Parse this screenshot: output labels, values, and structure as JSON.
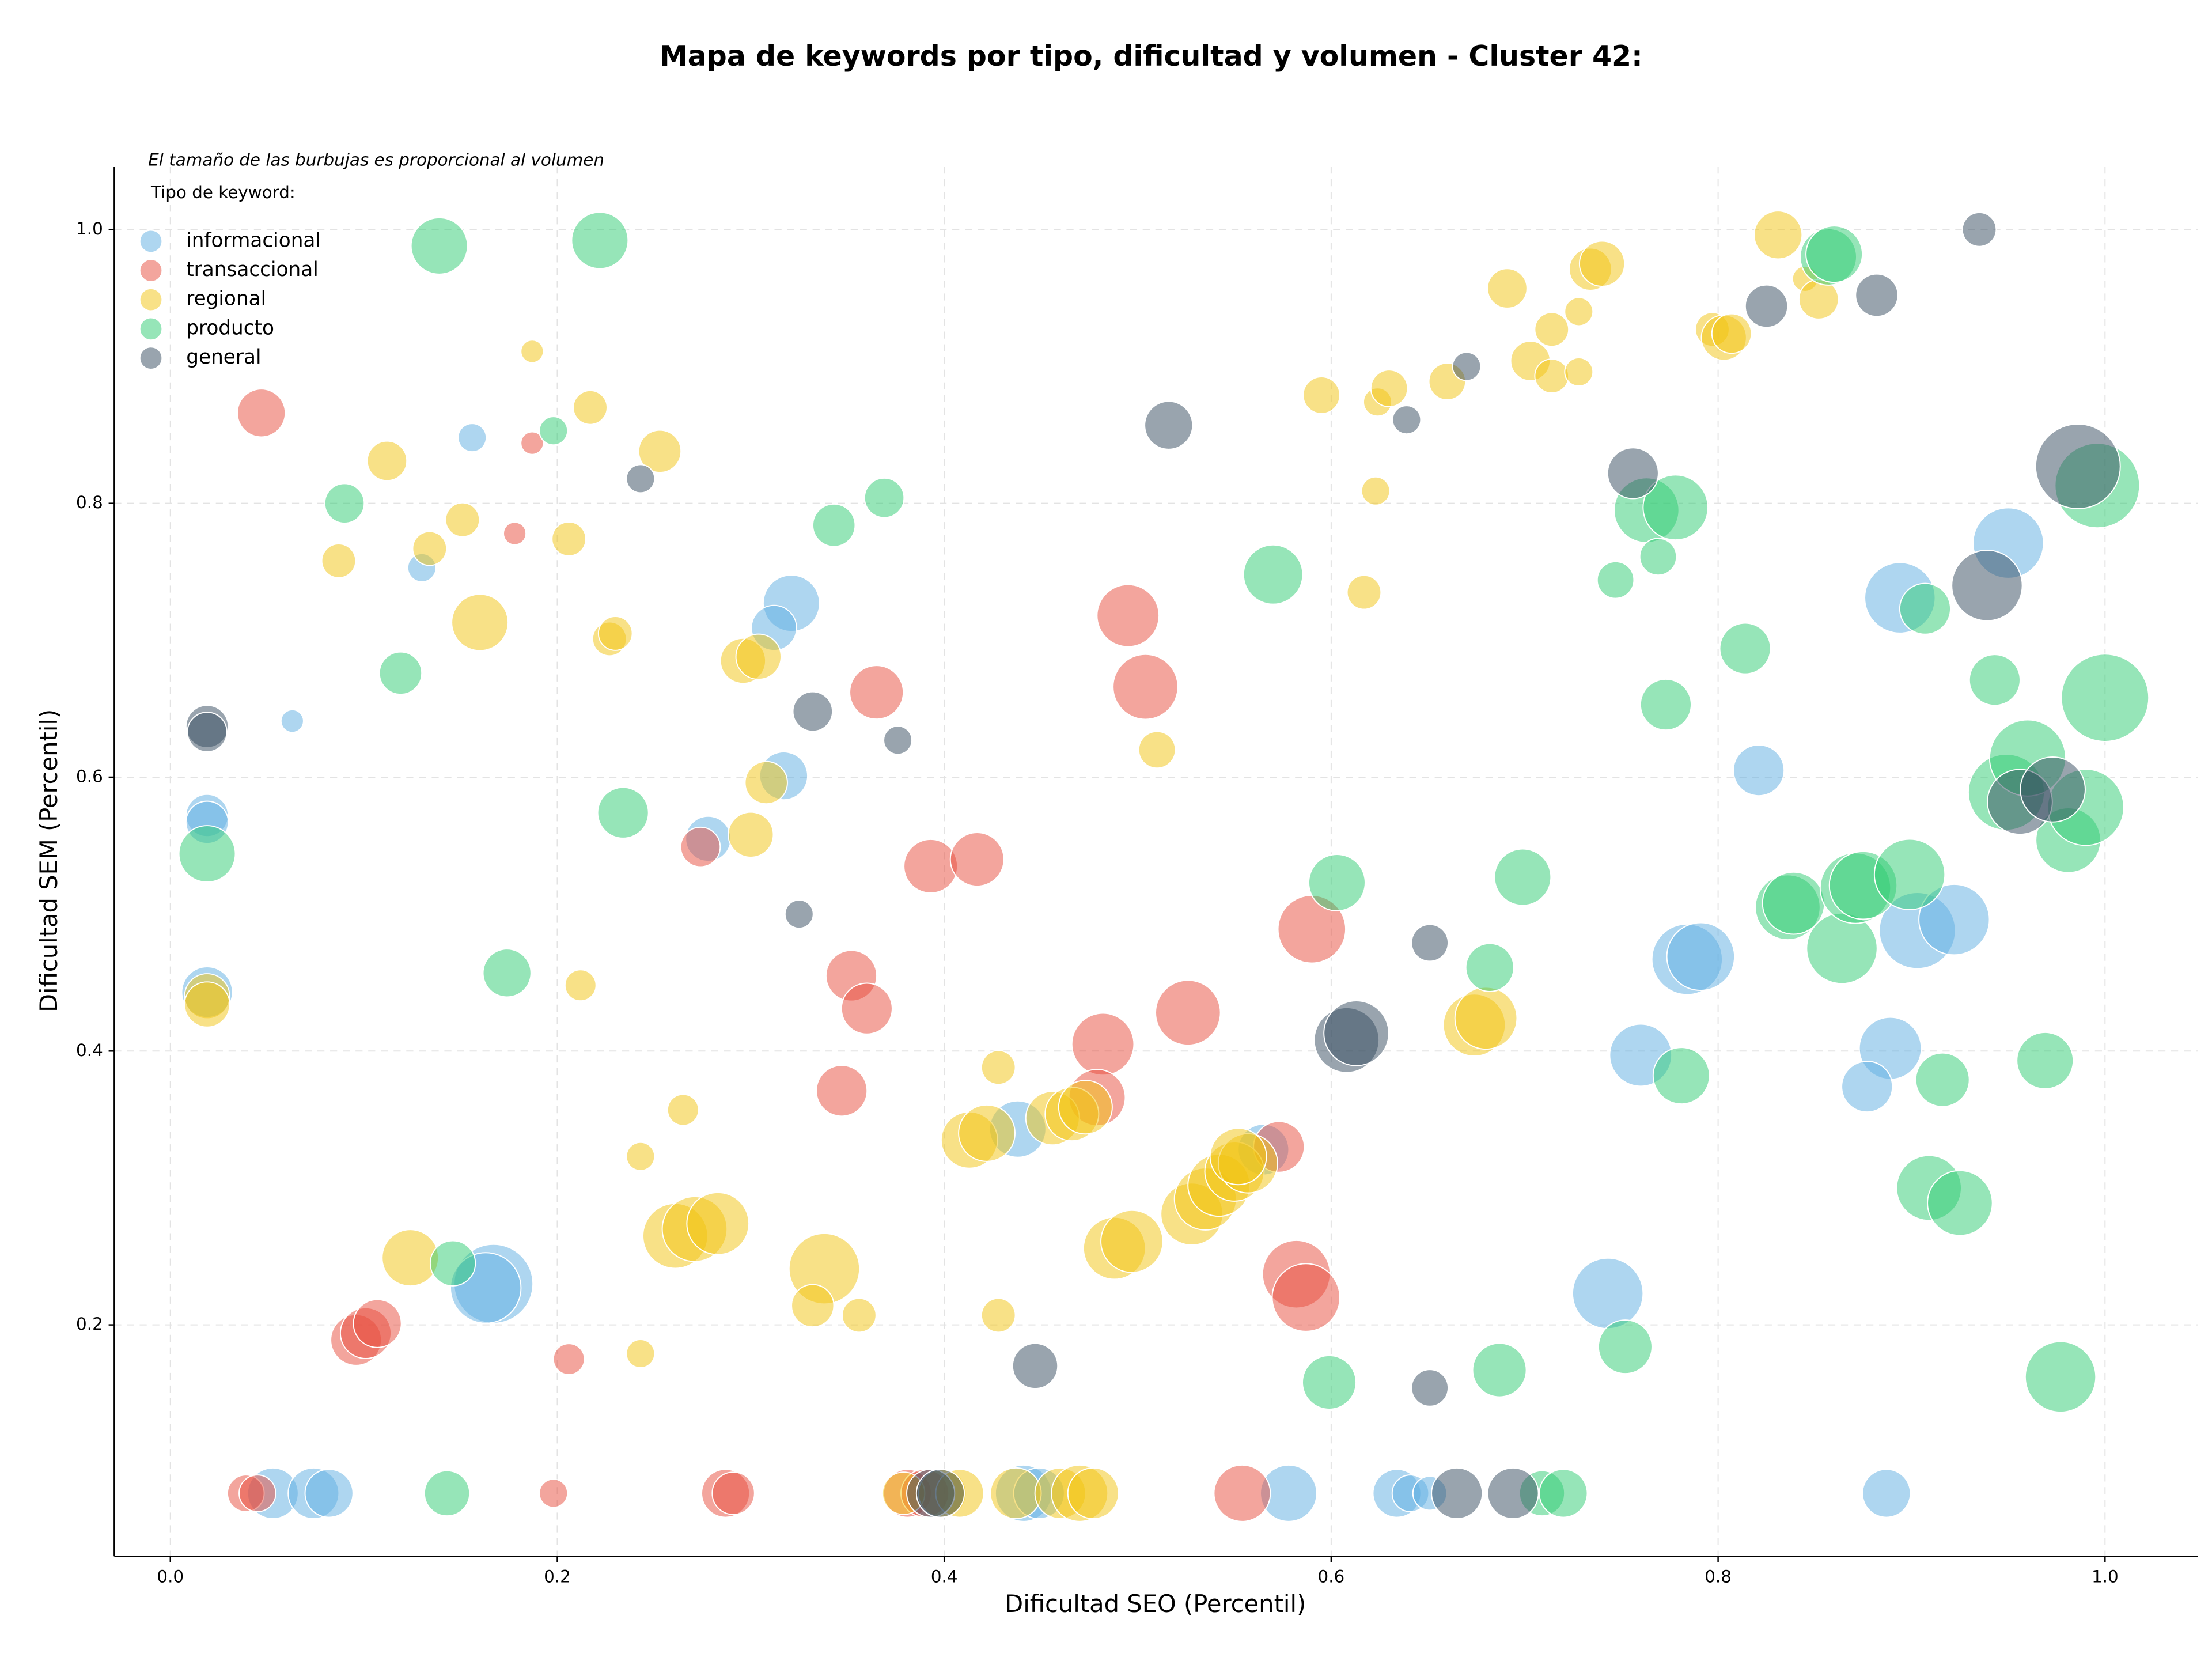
{
  "chart_data": {
    "type": "scatter",
    "title": "Mapa de keywords por tipo, dificultad y volumen - Cluster 42:",
    "x_label": "Dificultad SEO (Percentil)",
    "y_label": "Dificultad SEM (Percentil)",
    "annotation": "El tamaño de las burbujas es proporcional al volumen",
    "legend_title": "Tipo de keyword:",
    "legend": "upper left",
    "grid": true,
    "xlim": [
      -0.029,
      1.048
    ],
    "ylim": [
      0.031,
      1.046
    ],
    "xticks": [
      {
        "value": 0,
        "label": "0.0"
      },
      0.2,
      0.4,
      0.6,
      0.8,
      {
        "value": 1,
        "label": "1.0"
      }
    ],
    "yticks": [
      0.2,
      0.4,
      0.6,
      0.8,
      {
        "value": 1,
        "label": "1.0"
      }
    ],
    "series": [
      {
        "name": "informacional",
        "color": "#5dade2",
        "x": [
          0.019,
          0.019,
          0.019,
          0.156,
          0.13,
          0.063,
          0.321,
          0.312,
          0.317,
          0.278,
          0.167,
          0.163,
          0.438,
          0.565,
          0.894,
          0.95,
          0.821,
          0.784,
          0.791,
          0.903,
          0.922,
          0.76,
          0.889,
          0.877,
          0.743,
          0.053,
          0.074,
          0.082,
          0.578,
          0.634,
          0.641,
          0.651,
          0.887,
          0.441,
          0.449
        ],
        "values": [
          0.572,
          0.567,
          0.443,
          0.848,
          0.753,
          0.641,
          0.727,
          0.709,
          0.601,
          0.555,
          0.23,
          0.227,
          0.343,
          0.328,
          0.731,
          0.771,
          0.605,
          0.467,
          0.469,
          0.488,
          0.496,
          0.397,
          0.402,
          0.374,
          0.223,
          0.077,
          0.077,
          0.077,
          0.077,
          0.077,
          0.077,
          0.077,
          0.077,
          0.077,
          0.077
        ],
        "sizes": [
          225,
          225,
          324,
          100,
          100,
          64,
          400,
          256,
          289,
          256,
          784,
          625,
          400,
          324,
          625,
          625,
          324,
          625,
          576,
          729,
          625,
          484,
          484,
          324,
          625,
          324,
          324,
          289,
          400,
          289,
          169,
          144,
          289,
          400,
          324
        ]
      },
      {
        "name": "transaccional",
        "color": "#e74c3c",
        "x": [
          0.047,
          0.187,
          0.178,
          0.274,
          0.365,
          0.352,
          0.36,
          0.347,
          0.393,
          0.417,
          0.495,
          0.504,
          0.59,
          0.526,
          0.482,
          0.479,
          0.573,
          0.582,
          0.587,
          0.096,
          0.101,
          0.107,
          0.206,
          0.198,
          0.039,
          0.045,
          0.287,
          0.291,
          0.381,
          0.39,
          0.554
        ],
        "values": [
          0.866,
          0.844,
          0.778,
          0.549,
          0.662,
          0.455,
          0.431,
          0.371,
          0.535,
          0.54,
          0.718,
          0.666,
          0.489,
          0.428,
          0.405,
          0.366,
          0.33,
          0.237,
          0.22,
          0.189,
          0.194,
          0.201,
          0.175,
          0.077,
          0.077,
          0.077,
          0.077,
          0.077,
          0.077,
          0.077,
          0.077
        ],
        "sizes": [
          289,
          64,
          64,
          196,
          361,
          324,
          324,
          324,
          361,
          361,
          484,
          529,
          576,
          529,
          484,
          400,
          324,
          576,
          576,
          324,
          324,
          289,
          121,
          100,
          169,
          169,
          289,
          225,
          289,
          289,
          400
        ]
      },
      {
        "name": "regional",
        "color": "#f1c40f",
        "x": [
          0.187,
          0.217,
          0.253,
          0.112,
          0.134,
          0.151,
          0.087,
          0.206,
          0.16,
          0.227,
          0.23,
          0.296,
          0.304,
          0.308,
          0.3,
          0.019,
          0.019,
          0.212,
          0.265,
          0.243,
          0.124,
          0.261,
          0.271,
          0.283,
          0.338,
          0.332,
          0.356,
          0.243,
          0.428,
          0.428,
          0.413,
          0.422,
          0.456,
          0.466,
          0.473,
          0.488,
          0.497,
          0.51,
          0.528,
          0.535,
          0.542,
          0.55,
          0.557,
          0.552,
          0.595,
          0.617,
          0.623,
          0.624,
          0.63,
          0.66,
          0.691,
          0.703,
          0.714,
          0.714,
          0.728,
          0.728,
          0.734,
          0.74,
          0.674,
          0.68,
          0.831,
          0.797,
          0.803,
          0.807,
          0.845,
          0.852,
          0.379,
          0.399,
          0.408,
          0.437,
          0.46,
          0.47,
          0.477
        ],
        "values": [
          0.911,
          0.87,
          0.838,
          0.831,
          0.767,
          0.788,
          0.758,
          0.774,
          0.713,
          0.701,
          0.705,
          0.685,
          0.688,
          0.596,
          0.558,
          0.44,
          0.434,
          0.448,
          0.357,
          0.323,
          0.249,
          0.265,
          0.27,
          0.274,
          0.241,
          0.214,
          0.207,
          0.179,
          0.388,
          0.207,
          0.335,
          0.34,
          0.351,
          0.354,
          0.359,
          0.256,
          0.261,
          0.62,
          0.281,
          0.292,
          0.302,
          0.312,
          0.318,
          0.323,
          0.879,
          0.735,
          0.809,
          0.874,
          0.884,
          0.889,
          0.957,
          0.904,
          0.927,
          0.893,
          0.94,
          0.896,
          0.971,
          0.975,
          0.419,
          0.424,
          0.996,
          0.927,
          0.921,
          0.924,
          0.964,
          0.949,
          0.077,
          0.077,
          0.077,
          0.077,
          0.077,
          0.077,
          0.077
        ],
        "sizes": [
          64,
          144,
          225,
          196,
          144,
          144,
          144,
          144,
          400,
          144,
          144,
          256,
          256,
          225,
          256,
          256,
          256,
          121,
          121,
          100,
          400,
          529,
          529,
          484,
          625,
          225,
          144,
          100,
          144,
          144,
          400,
          400,
          361,
          361,
          361,
          484,
          484,
          169,
          484,
          484,
          484,
          441,
          441,
          400,
          169,
          144,
          100,
          100,
          169,
          169,
          196,
          196,
          144,
          144,
          100,
          100,
          225,
          256,
          484,
          484,
          289,
          144,
          256,
          196,
          81,
          196,
          225,
          289,
          289,
          324,
          324,
          400,
          324
        ]
      },
      {
        "name": "producto",
        "color": "#2ecc71",
        "x": [
          0.139,
          0.222,
          0.198,
          0.09,
          0.119,
          0.019,
          0.234,
          0.174,
          0.146,
          0.143,
          0.343,
          0.369,
          0.57,
          0.603,
          0.699,
          0.682,
          0.599,
          0.687,
          0.752,
          0.781,
          0.763,
          0.778,
          0.747,
          0.769,
          0.773,
          0.814,
          0.857,
          0.86,
          0.836,
          0.839,
          0.864,
          0.871,
          0.875,
          0.899,
          0.907,
          0.916,
          0.909,
          0.925,
          0.943,
          0.949,
          0.96,
          0.969,
          0.981,
          0.99,
          0.996,
          1.0,
          0.977,
          0.709,
          0.72
        ],
        "values": [
          0.988,
          0.992,
          0.853,
          0.8,
          0.676,
          0.544,
          0.574,
          0.457,
          0.245,
          0.077,
          0.784,
          0.804,
          0.748,
          0.523,
          0.527,
          0.461,
          0.158,
          0.167,
          0.184,
          0.382,
          0.795,
          0.797,
          0.744,
          0.761,
          0.653,
          0.694,
          0.98,
          0.982,
          0.505,
          0.508,
          0.475,
          0.519,
          0.521,
          0.529,
          0.723,
          0.379,
          0.3,
          0.289,
          0.671,
          0.589,
          0.614,
          0.393,
          0.554,
          0.578,
          0.813,
          0.658,
          0.162,
          0.077,
          0.077
        ],
        "sizes": [
          400,
          400,
          100,
          196,
          225,
          400,
          324,
          289,
          256,
          256,
          225,
          196,
          441,
          400,
          400,
          289,
          361,
          361,
          361,
          400,
          529,
          529,
          169,
          169,
          324,
          324,
          400,
          400,
          529,
          484,
          625,
          625,
          576,
          625,
          324,
          361,
          529,
          529,
          324,
          729,
          729,
          400,
          529,
          729,
          900,
          961,
          625,
          256,
          289
        ]
      },
      {
        "name": "general",
        "color": "#34495e",
        "x": [
          0.019,
          0.019,
          0.243,
          0.332,
          0.376,
          0.325,
          0.516,
          0.639,
          0.67,
          0.651,
          0.608,
          0.613,
          0.447,
          0.651,
          0.756,
          0.825,
          0.882,
          0.935,
          0.986,
          0.939,
          0.956,
          0.973,
          0.393,
          0.398,
          0.665,
          0.694
        ],
        "values": [
          0.637,
          0.633,
          0.818,
          0.648,
          0.627,
          0.5,
          0.857,
          0.861,
          0.9,
          0.479,
          0.408,
          0.413,
          0.17,
          0.154,
          0.822,
          0.944,
          0.952,
          1.0,
          0.827,
          0.74,
          0.582,
          0.591,
          0.077,
          0.077,
          0.077,
          0.077
        ],
        "sizes": [
          225,
          196,
          100,
          196,
          100,
          100,
          289,
          100,
          100,
          169,
          529,
          529,
          256,
          169,
          324,
          225,
          225,
          144,
          900,
          625,
          529,
          529,
          289,
          289,
          324,
          324
        ]
      }
    ]
  }
}
